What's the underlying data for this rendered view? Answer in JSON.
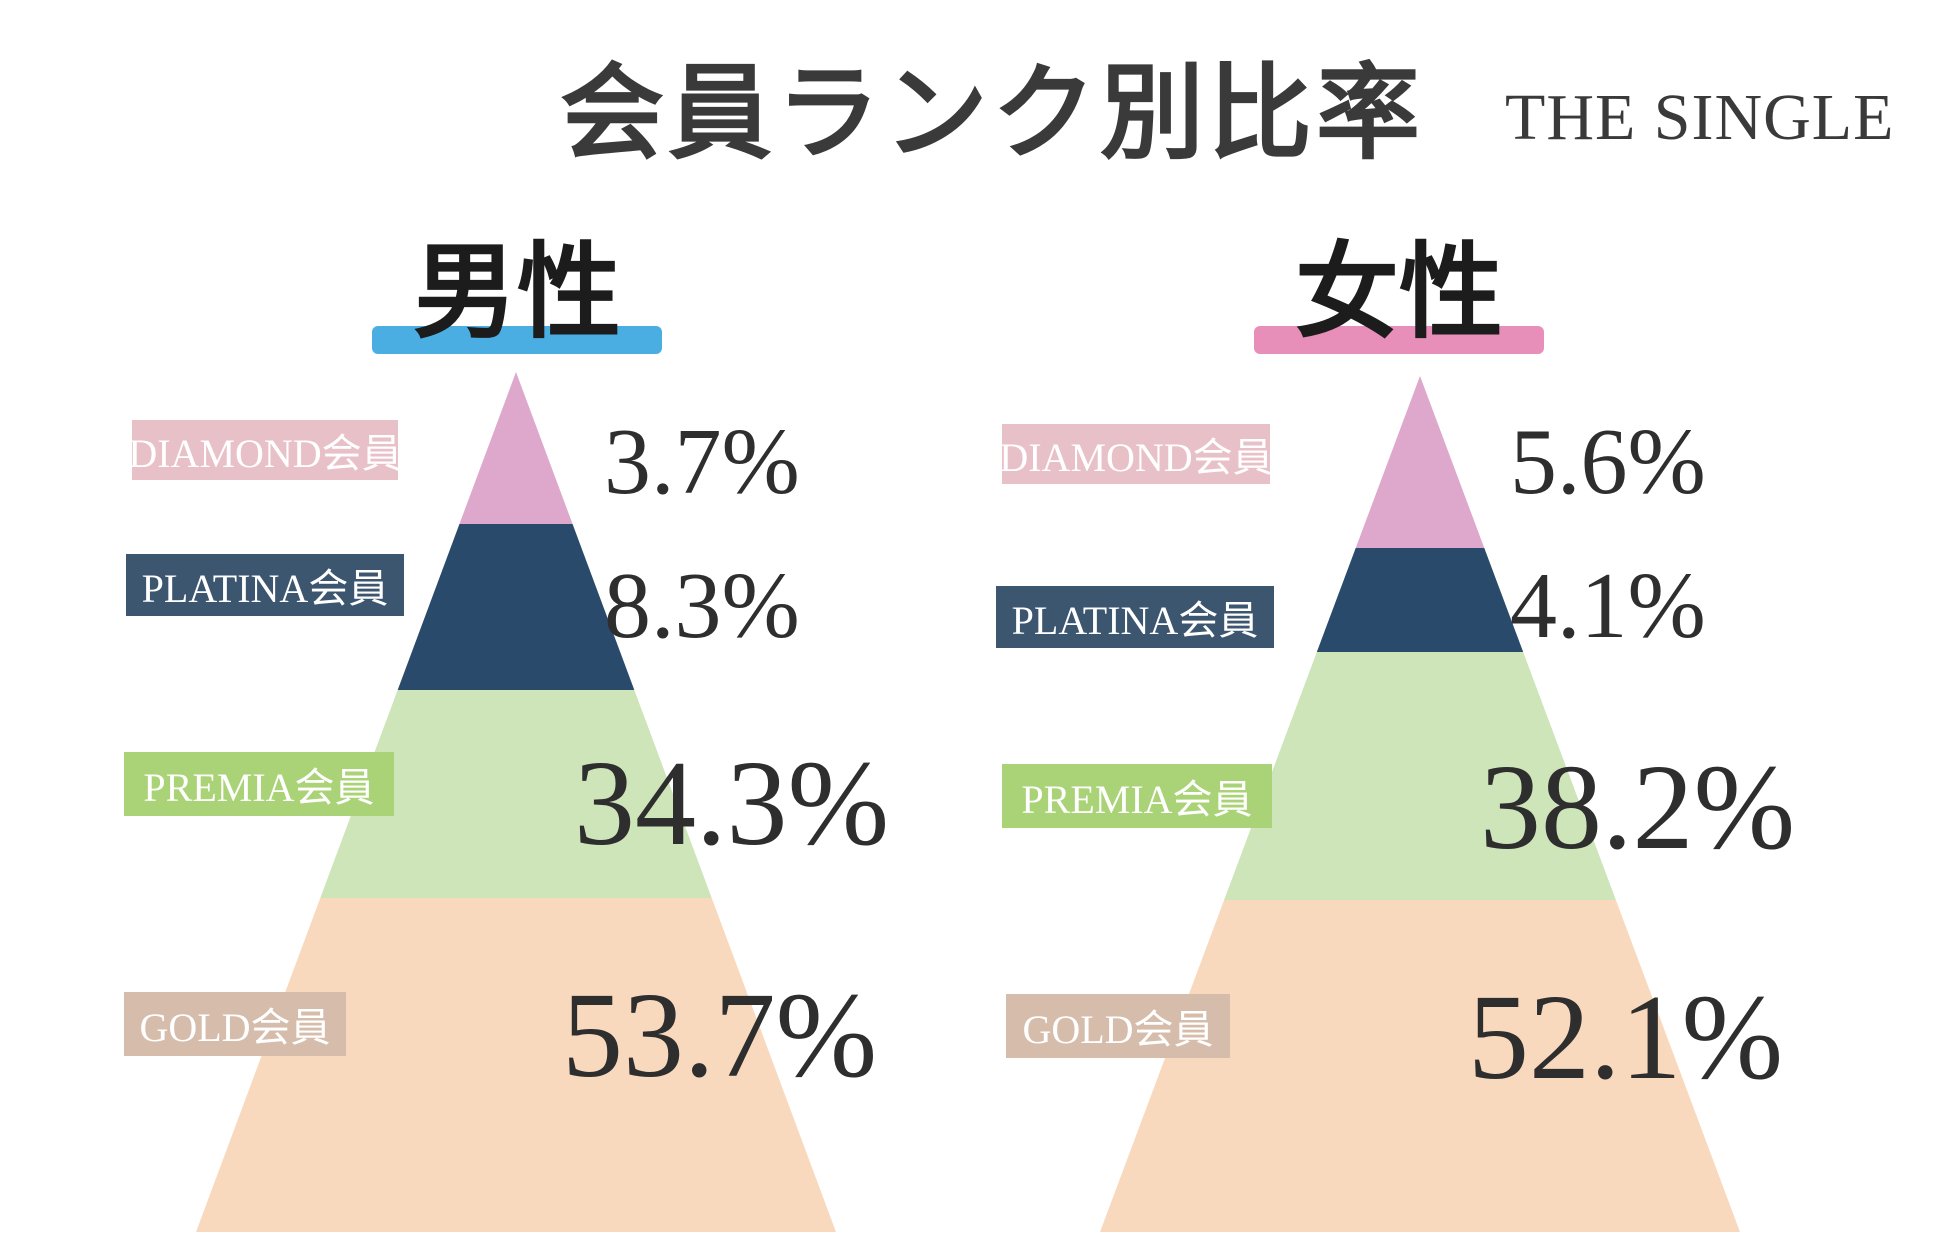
{
  "title": "会員ランク別比率",
  "brand": "THE SINGLE",
  "colors": {
    "diamond": "#dea8cc",
    "platina": "#2a4a6b",
    "premia": "#cde5b9",
    "gold": "#f9d9be",
    "diamond_label": "#e8c1c8",
    "platina_label": "#3c5670",
    "premia_label": "#a9d376",
    "gold_label": "#d6bcab",
    "male_accent": "#4aaee3",
    "female_accent": "#e88fb9"
  },
  "chart_data": [
    {
      "type": "pyramid",
      "title": "男性",
      "unit": "%",
      "categories": [
        "DIAMOND会員",
        "PLATINA会員",
        "PREMIA会員",
        "GOLD会員"
      ],
      "values": [
        3.7,
        8.3,
        34.3,
        53.7
      ],
      "labels": [
        "3.7%",
        "8.3%",
        "34.3%",
        "53.7%"
      ]
    },
    {
      "type": "pyramid",
      "title": "女性",
      "unit": "%",
      "categories": [
        "DIAMOND会員",
        "PLATINA会員",
        "PREMIA会員",
        "GOLD会員"
      ],
      "values": [
        5.6,
        4.1,
        38.2,
        52.1
      ],
      "labels": [
        "5.6%",
        "4.1%",
        "38.2%",
        "52.1%"
      ]
    }
  ]
}
